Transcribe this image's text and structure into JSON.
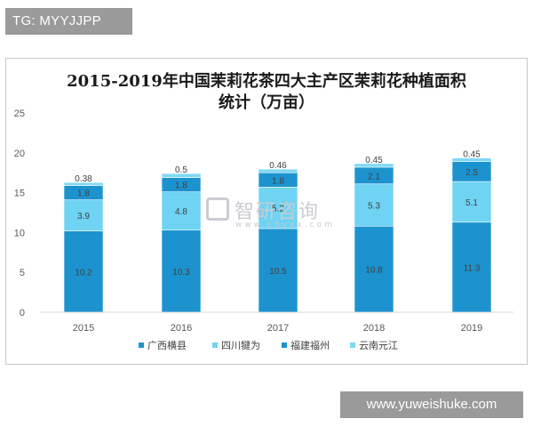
{
  "overlay": {
    "top_label": "TG: MYYJJPP",
    "bottom_url": "www.yuweishuke.com"
  },
  "watermark": {
    "text": "智研咨询",
    "url": "www.chyxx.com"
  },
  "colors": {
    "guangxi": "#1c93cf",
    "sichuan": "#6fd3f3",
    "fujian": "#1c93cf",
    "yunnan": "#7fd8f5",
    "label": "#404040",
    "grid": "#d9d9d9"
  },
  "chart_data": {
    "type": "bar",
    "stacked": true,
    "title_line1": "2015-2019年中国茉莉花茶四大主产区茉莉花种植面积",
    "title_line2": "统计（万亩）",
    "categories": [
      "2015",
      "2016",
      "2017",
      "2018",
      "2019"
    ],
    "series": [
      {
        "name": "广西横县",
        "values": [
          10.2,
          10.3,
          10.5,
          10.8,
          11.3
        ],
        "labels": [
          "10.2",
          "10.3",
          "10.5",
          "10.8",
          "11.3"
        ]
      },
      {
        "name": "四川犍为",
        "values": [
          3.9,
          4.8,
          5.2,
          5.3,
          5.1
        ],
        "labels": [
          "3.9",
          "4.8",
          "5.2",
          "5.3",
          "5.1"
        ]
      },
      {
        "name": "福建福州",
        "values": [
          1.8,
          1.8,
          1.8,
          2.1,
          2.5
        ],
        "labels": [
          "1.8",
          "1.8",
          "1.8",
          "2.1",
          "2.5"
        ]
      },
      {
        "name": "云南元江",
        "values": [
          0.38,
          0.5,
          0.46,
          0.45,
          0.45
        ],
        "labels": [
          "0.38",
          "0.5",
          "0.46",
          "0.45",
          "0.45"
        ]
      }
    ],
    "yticks": [
      "0",
      "5",
      "10",
      "15",
      "20",
      "25"
    ],
    "ylim": [
      0,
      25
    ],
    "grid": false,
    "legend_position": "bottom"
  }
}
